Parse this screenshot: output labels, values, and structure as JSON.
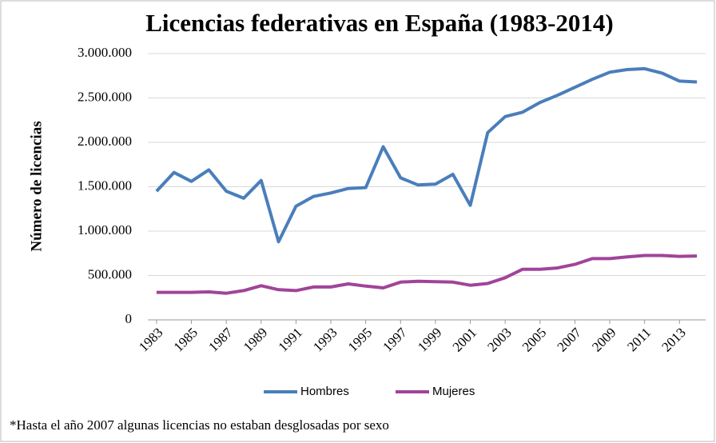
{
  "chart_data": {
    "type": "line",
    "title": "Licencias federativas en España (1983-2014)",
    "ylabel": "Número de licencias",
    "note": "*Hasta el año 2007 algunas licencias no estaban desglosadas por sexo",
    "x": [
      1983,
      1984,
      1985,
      1986,
      1987,
      1988,
      1989,
      1990,
      1991,
      1992,
      1993,
      1994,
      1995,
      1996,
      1997,
      1998,
      1999,
      2000,
      2001,
      2002,
      2003,
      2004,
      2005,
      2006,
      2007,
      2008,
      2009,
      2010,
      2011,
      2012,
      2013,
      2014
    ],
    "xlim": [
      1982.5,
      2014.5
    ],
    "xticks": [
      1983,
      1985,
      1987,
      1989,
      1991,
      1993,
      1995,
      1997,
      1999,
      2001,
      2003,
      2005,
      2007,
      2009,
      2011,
      2013
    ],
    "ylim": [
      0,
      3000000
    ],
    "yticks": [
      0,
      {
        "value": 500000,
        "label": "500.000"
      },
      {
        "value": 1000000,
        "label": "1.000.000"
      },
      {
        "value": 1500000,
        "label": "1.500.000"
      },
      {
        "value": 2000000,
        "label": "2.000.000"
      },
      {
        "value": 2500000,
        "label": "2.500.000"
      },
      {
        "value": 3000000,
        "label": "3.000.000"
      }
    ],
    "grid": true,
    "legend": "bottom",
    "series": [
      {
        "name": "Hombres",
        "color": "#4a7ebb",
        "values": [
          1450000,
          1660000,
          1560000,
          1690000,
          1450000,
          1370000,
          1570000,
          880000,
          1280000,
          1390000,
          1430000,
          1480000,
          1490000,
          1950000,
          1600000,
          1520000,
          1530000,
          1640000,
          1290000,
          2110000,
          2290000,
          2340000,
          2450000,
          2530000,
          2620000,
          2710000,
          2790000,
          2820000,
          2830000,
          2780000,
          2690000,
          2680000
        ]
      },
      {
        "name": "Mujeres",
        "color": "#a0449a",
        "values": [
          310000,
          310000,
          310000,
          315000,
          300000,
          330000,
          385000,
          340000,
          330000,
          370000,
          370000,
          405000,
          380000,
          360000,
          425000,
          435000,
          430000,
          425000,
          390000,
          410000,
          475000,
          570000,
          570000,
          585000,
          625000,
          690000,
          690000,
          710000,
          725000,
          725000,
          715000,
          720000
        ]
      }
    ]
  }
}
